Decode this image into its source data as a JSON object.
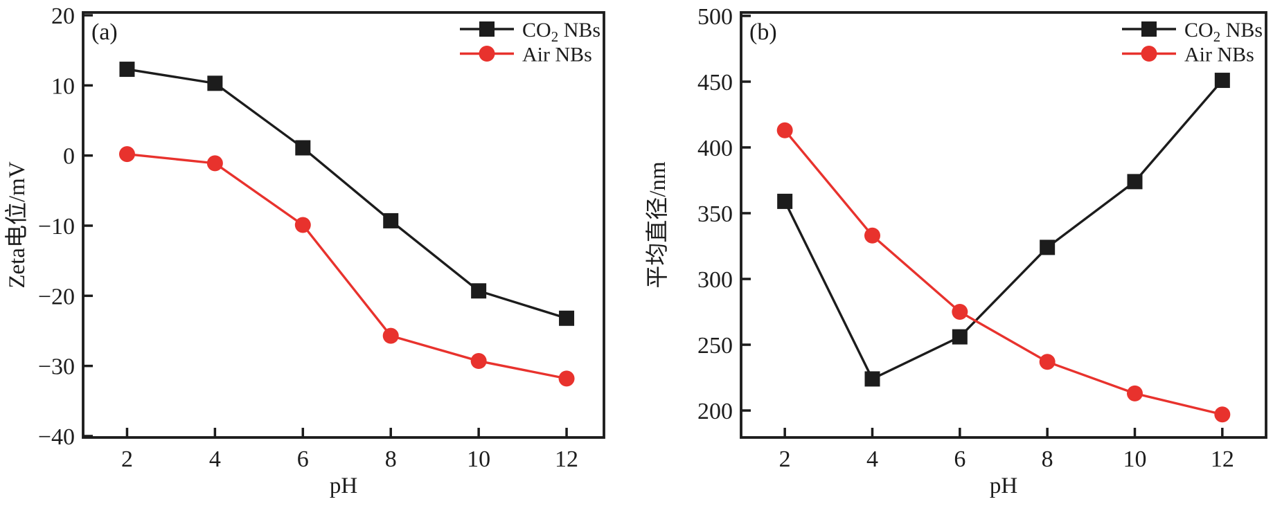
{
  "figure": {
    "background": "#ffffff",
    "frame_color": "#1c1c1c",
    "text_color": "#1c1c1c",
    "accent_red": "#e8322d"
  },
  "chart_data": [
    {
      "id": "a",
      "type": "line",
      "panel_label": "(a)",
      "xlabel": "pH",
      "ylabel": "Zeta电位/mV",
      "x": [
        2,
        4,
        6,
        8,
        10,
        12
      ],
      "xticks": [
        "2",
        "4",
        "6",
        "8",
        "10",
        "12"
      ],
      "yticks": [
        "20",
        "10",
        "0",
        "-10",
        "-20",
        "-30",
        "-40"
      ],
      "xlim": [
        1.0,
        12.85
      ],
      "ylim": [
        -40.2,
        20.4
      ],
      "grid": false,
      "legend_position": "top-right",
      "series": [
        {
          "name": "CO2 NBs",
          "legend": {
            "pre": "CO",
            "sub": "2",
            "post": " NBs"
          },
          "marker": "square",
          "color": "#1c1c1c",
          "values": [
            12.3,
            10.3,
            1.1,
            -9.3,
            -19.3,
            -23.2
          ]
        },
        {
          "name": "Air NBs",
          "legend": {
            "pre": "Air NBs",
            "sub": "",
            "post": ""
          },
          "marker": "circle",
          "color": "#e8322d",
          "values": [
            0.2,
            -1.1,
            -9.9,
            -25.7,
            -29.3,
            -31.8
          ]
        }
      ]
    },
    {
      "id": "b",
      "type": "line",
      "panel_label": "(b)",
      "xlabel": "pH",
      "ylabel": "平均直径/nm",
      "x": [
        2,
        4,
        6,
        8,
        10,
        12
      ],
      "xticks": [
        "2",
        "4",
        "6",
        "8",
        "10",
        "12"
      ],
      "yticks": [
        "500",
        "450",
        "400",
        "350",
        "300",
        "250",
        "200"
      ],
      "xlim": [
        1.0,
        13.0
      ],
      "ylim": [
        179.5,
        502.6
      ],
      "grid": false,
      "legend_position": "top-right",
      "series": [
        {
          "name": "CO2 NBs",
          "legend": {
            "pre": "CO",
            "sub": "2",
            "post": " NBs"
          },
          "marker": "square",
          "color": "#1c1c1c",
          "values": [
            359,
            224,
            256,
            324,
            374,
            451
          ]
        },
        {
          "name": "Air NBs",
          "legend": {
            "pre": "Air NBs",
            "sub": "",
            "post": ""
          },
          "marker": "circle",
          "color": "#e8322d",
          "values": [
            413,
            333,
            275,
            237,
            213,
            197
          ]
        }
      ]
    }
  ]
}
